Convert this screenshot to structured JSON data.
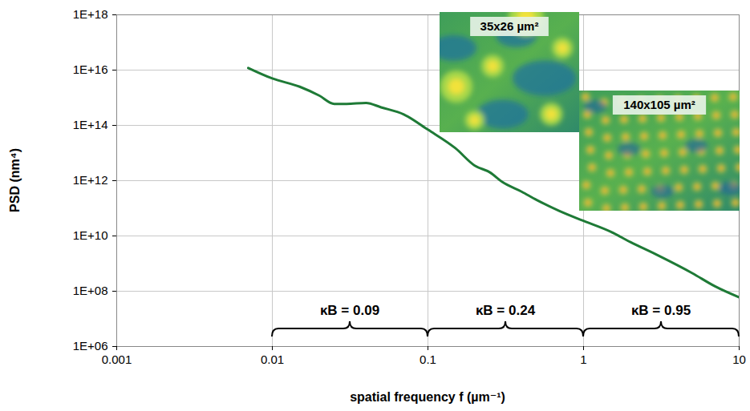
{
  "chart_data": {
    "type": "line",
    "x_label": "spatial frequency f (µm⁻¹)",
    "y_label": "PSD (nm⁴)",
    "log": true,
    "grid": true,
    "color": "#1e7a36",
    "xlim": [
      0.001,
      10
    ],
    "xticks": [
      0.001,
      0.01,
      0.1,
      1,
      10
    ],
    "ylim": [
      1000000.0,
      1e+18
    ],
    "yticks": [
      {
        "value": 1000000.0,
        "label": "1E+06"
      },
      {
        "value": 100000000.0,
        "label": "1E+08"
      },
      {
        "value": 10000000000.0,
        "label": "1E+10"
      },
      {
        "value": 1000000000000.0,
        "label": "1E+12"
      },
      {
        "value": 100000000000000.0,
        "label": "1E+14"
      },
      {
        "value": 1e+16,
        "label": "1E+16"
      },
      {
        "value": 1e+18,
        "label": "1E+18"
      }
    ],
    "x": [
      0.007,
      0.01,
      0.015,
      0.02,
      0.025,
      0.03,
      0.04,
      0.05,
      0.07,
      0.1,
      0.15,
      0.2,
      0.25,
      0.3,
      0.4,
      0.5,
      0.7,
      1,
      1.5,
      2,
      3,
      5,
      7,
      10
    ],
    "values": [
      1.2e+16,
      5000000000000000.0,
      2500000000000000.0,
      1200000000000000.0,
      600000000000000.0,
      600000000000000.0,
      650000000000000.0,
      450000000000000.0,
      250000000000000.0,
      70000000000000.0,
      15000000000000.0,
      3500000000000.0,
      2000000000000.0,
      900000000000.0,
      400000000000.0,
      200000000000.0,
      80000000000.0,
      35000000000.0,
      14000000000.0,
      6000000000.0,
      2000000000.0,
      450000000.0,
      150000000.0,
      60000000.0
    ],
    "annotations": [
      {
        "text": "κB = 0.09",
        "x_range": [
          0.01,
          0.1
        ]
      },
      {
        "text": "κB = 0.24",
        "x_range": [
          0.1,
          1
        ]
      },
      {
        "text": "κB = 0.95",
        "x_range": [
          1,
          10
        ]
      }
    ],
    "insets": [
      {
        "label": "35x26 µm²"
      },
      {
        "label": "140x105 µm²"
      }
    ]
  }
}
